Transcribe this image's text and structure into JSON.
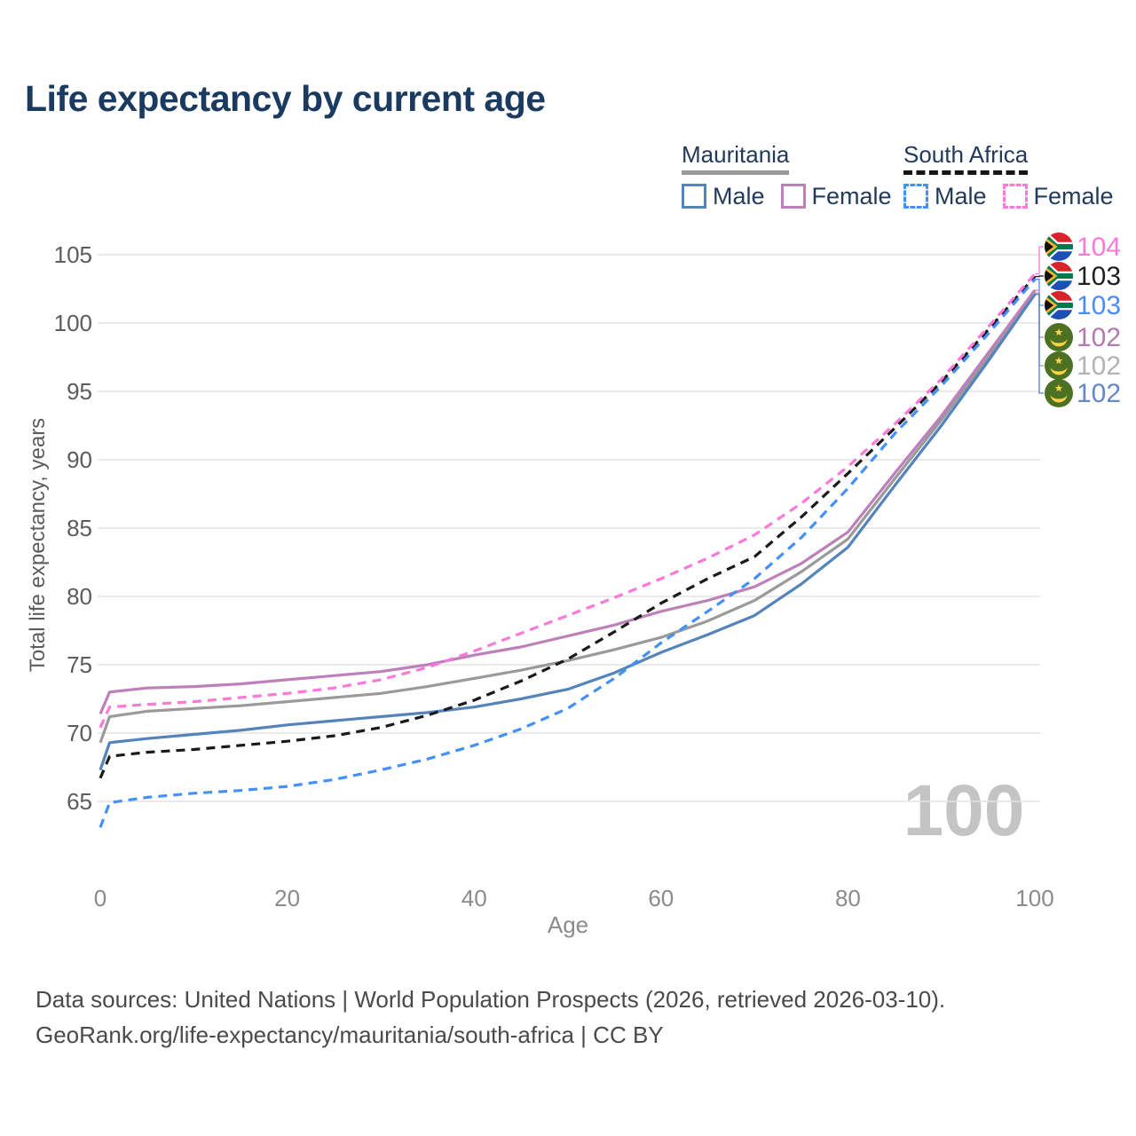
{
  "title": "Life expectancy by current age",
  "legend": {
    "groups": [
      {
        "name": "Mauritania",
        "style": "solid",
        "underline_color": "#9a9a9a",
        "items": [
          {
            "label": "Male",
            "color": "#5583bb"
          },
          {
            "label": "Female",
            "color": "#bd80ba"
          }
        ]
      },
      {
        "name": "South Africa",
        "style": "dashed",
        "underline_color": "#161616",
        "items": [
          {
            "label": "Male",
            "color": "#4490fb"
          },
          {
            "label": "Female",
            "color": "#fb7ad9"
          }
        ]
      }
    ]
  },
  "watermark": "100",
  "footer": {
    "line1": "Data sources: United Nations | World Population Prospects (2026, retrieved 2026-03-10).",
    "line2": "GeoRank.org/life-expectancy/mauritania/south-africa | CC BY"
  },
  "chart_data": {
    "type": "line",
    "title": "Life expectancy by current age",
    "xlabel": "Age",
    "ylabel": "Total life expectancy, years",
    "x_ticks": [
      0,
      20,
      40,
      60,
      80,
      100
    ],
    "y_ticks": [
      65,
      70,
      75,
      80,
      85,
      90,
      95,
      100,
      105
    ],
    "xlim": [
      0,
      100
    ],
    "ylim": [
      63,
      105.5
    ],
    "grid": true,
    "legend_position": "top-right",
    "x": [
      0,
      1,
      5,
      10,
      15,
      20,
      25,
      30,
      35,
      40,
      45,
      50,
      55,
      60,
      65,
      70,
      75,
      80,
      85,
      90,
      95,
      100
    ],
    "series": [
      {
        "name": "Mauritania Male",
        "country": "Mauritania",
        "sex": "male",
        "color": "#5583bb",
        "dashed": false,
        "end_label": {
          "value": "102",
          "color": "#6488c8",
          "flag": "mauritania"
        },
        "values": [
          67.3,
          69.3,
          69.6,
          69.9,
          70.2,
          70.6,
          70.9,
          71.2,
          71.5,
          71.9,
          72.5,
          73.2,
          74.4,
          75.9,
          77.2,
          78.6,
          80.9,
          83.6,
          88.1,
          92.5,
          97.2,
          102.1
        ]
      },
      {
        "name": "Mauritania Female",
        "country": "Mauritania",
        "sex": "female",
        "color": "#bd80ba",
        "dashed": false,
        "end_label": {
          "value": "102",
          "color": "#b17ab1",
          "flag": "mauritania"
        },
        "values": [
          71.4,
          73.0,
          73.3,
          73.4,
          73.6,
          73.9,
          74.2,
          74.5,
          75.0,
          75.7,
          76.3,
          77.1,
          77.9,
          78.9,
          79.7,
          80.7,
          82.4,
          84.7,
          89.0,
          93.2,
          97.8,
          102.4
        ]
      },
      {
        "name": "Mauritania",
        "country": "Mauritania",
        "sex": "both",
        "color": "#9a9a9a",
        "dashed": false,
        "end_label": {
          "value": "102",
          "color": "#b3b3b3",
          "flag": "mauritania"
        },
        "values": [
          69.3,
          71.2,
          71.6,
          71.8,
          72.0,
          72.3,
          72.6,
          72.9,
          73.4,
          74.0,
          74.6,
          75.3,
          76.1,
          77.0,
          78.2,
          79.7,
          81.8,
          84.2,
          88.6,
          92.9,
          97.5,
          102.2
        ]
      },
      {
        "name": "South Africa Male",
        "country": "South Africa",
        "sex": "male",
        "color": "#4490fb",
        "dashed": true,
        "end_label": {
          "value": "103",
          "color": "#4d8bf8",
          "flag": "south-africa"
        },
        "values": [
          63.1,
          64.9,
          65.3,
          65.6,
          65.8,
          66.1,
          66.6,
          67.3,
          68.1,
          69.1,
          70.3,
          71.8,
          74.0,
          76.6,
          78.9,
          81.3,
          84.3,
          87.9,
          91.9,
          95.4,
          99.2,
          103.2
        ]
      },
      {
        "name": "South Africa Female",
        "country": "South Africa",
        "sex": "female",
        "color": "#fb7ad9",
        "dashed": true,
        "end_label": {
          "value": "104",
          "color": "#fb7ad9",
          "flag": "south-africa"
        },
        "values": [
          70.4,
          71.9,
          72.1,
          72.3,
          72.6,
          72.9,
          73.3,
          73.9,
          74.8,
          76.0,
          77.3,
          78.6,
          79.9,
          81.3,
          82.8,
          84.5,
          86.8,
          89.5,
          92.6,
          95.9,
          99.7,
          103.6
        ]
      },
      {
        "name": "South Africa",
        "country": "South Africa",
        "sex": "both",
        "color": "#1a1a1a",
        "dashed": true,
        "end_label": {
          "value": "103",
          "color": "#1f1f1f",
          "flag": "south-africa"
        },
        "values": [
          66.7,
          68.3,
          68.6,
          68.8,
          69.1,
          69.4,
          69.8,
          70.4,
          71.3,
          72.4,
          73.8,
          75.4,
          77.4,
          79.5,
          81.3,
          82.9,
          85.8,
          89.0,
          92.3,
          95.7,
          99.5,
          103.4
        ]
      }
    ]
  }
}
